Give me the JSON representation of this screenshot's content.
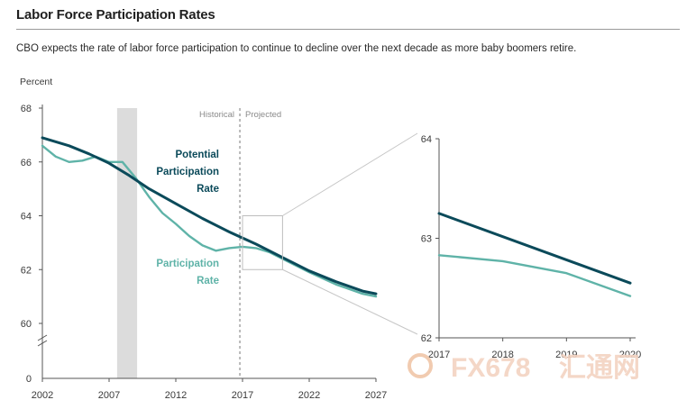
{
  "title": "Labor Force Participation Rates",
  "subtitle": "CBO expects the rate of labor force participation to continue to decline over the next decade as more baby boomers retire.",
  "colors": {
    "potential": "#0b4a5a",
    "actual": "#5fb3a8",
    "recession": "#dcdcdc",
    "axis": "#555555"
  },
  "chart_data": [
    {
      "type": "line",
      "ylabel": "Percent",
      "ylim": [
        60,
        68
      ],
      "yticks": [
        "68",
        "66",
        "64",
        "62",
        "60"
      ],
      "ybase_label": "0",
      "xlim": [
        2002,
        2027
      ],
      "xticks": [
        "2002",
        "2007",
        "2012",
        "2017",
        "2022",
        "2027"
      ],
      "recession": [
        2007.6,
        2009.1
      ],
      "divider_year": 2016.8,
      "era_labels": {
        "historical": "Historical",
        "projected": "Projected"
      },
      "zoom_box": {
        "x": [
          2017,
          2020
        ],
        "y": [
          62,
          64
        ]
      },
      "series": [
        {
          "name": "Potential Participation Rate",
          "label_lines": [
            "Potential",
            "Participation",
            "Rate"
          ],
          "x": [
            2002,
            2004,
            2005.5,
            2007,
            2008.5,
            2010,
            2012,
            2014,
            2016,
            2018,
            2020,
            2022,
            2024,
            2026,
            2027
          ],
          "y": [
            66.9,
            66.6,
            66.3,
            65.95,
            65.5,
            65.0,
            64.45,
            63.9,
            63.4,
            62.95,
            62.45,
            61.95,
            61.55,
            61.2,
            61.1
          ]
        },
        {
          "name": "Participation Rate",
          "label_lines": [
            "Participation",
            "Rate"
          ],
          "x": [
            2002,
            2003,
            2004,
            2005,
            2006,
            2007,
            2008,
            2009,
            2010,
            2011,
            2012,
            2013,
            2014,
            2015,
            2016,
            2017,
            2018,
            2019,
            2020,
            2022,
            2024,
            2026,
            2027
          ],
          "y": [
            66.6,
            66.2,
            66.0,
            66.05,
            66.2,
            66.0,
            66.0,
            65.4,
            64.7,
            64.1,
            63.7,
            63.25,
            62.9,
            62.7,
            62.8,
            62.85,
            62.8,
            62.65,
            62.4,
            61.9,
            61.45,
            61.1,
            61.0
          ]
        }
      ]
    },
    {
      "type": "line",
      "ylim": [
        62,
        64
      ],
      "yticks": [
        "64",
        "63",
        "62"
      ],
      "xlim": [
        2017,
        2020
      ],
      "xticks": [
        "2017",
        "2018",
        "2019",
        "2020"
      ],
      "series": [
        {
          "name": "Potential Participation Rate",
          "x": [
            2017,
            2020
          ],
          "y": [
            63.25,
            62.55
          ]
        },
        {
          "name": "Participation Rate",
          "x": [
            2017,
            2018,
            2019,
            2020
          ],
          "y": [
            62.83,
            62.77,
            62.65,
            62.42
          ]
        }
      ]
    }
  ],
  "watermark": {
    "latin": "FX678",
    "cjk": "汇通网"
  }
}
